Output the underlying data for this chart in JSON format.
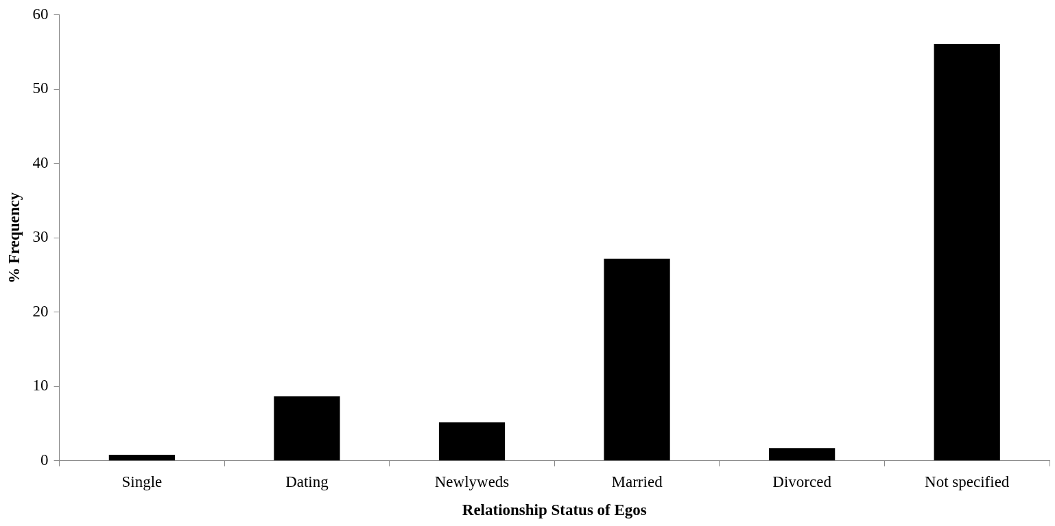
{
  "chart_data": {
    "type": "bar",
    "xlabel": "Relationship Status of Egos",
    "ylabel": "% Frequency",
    "categories": [
      "Single",
      "Dating",
      "Newlyweds",
      "Married",
      "Divorced",
      "Not specified"
    ],
    "values": [
      0.8,
      8.7,
      5.2,
      27.2,
      1.7,
      56.1
    ],
    "color": "#000000",
    "ylim": [
      0,
      60
    ],
    "yticks": [
      0,
      10,
      20,
      30,
      40,
      50,
      60
    ],
    "grid": false,
    "legend": false
  }
}
